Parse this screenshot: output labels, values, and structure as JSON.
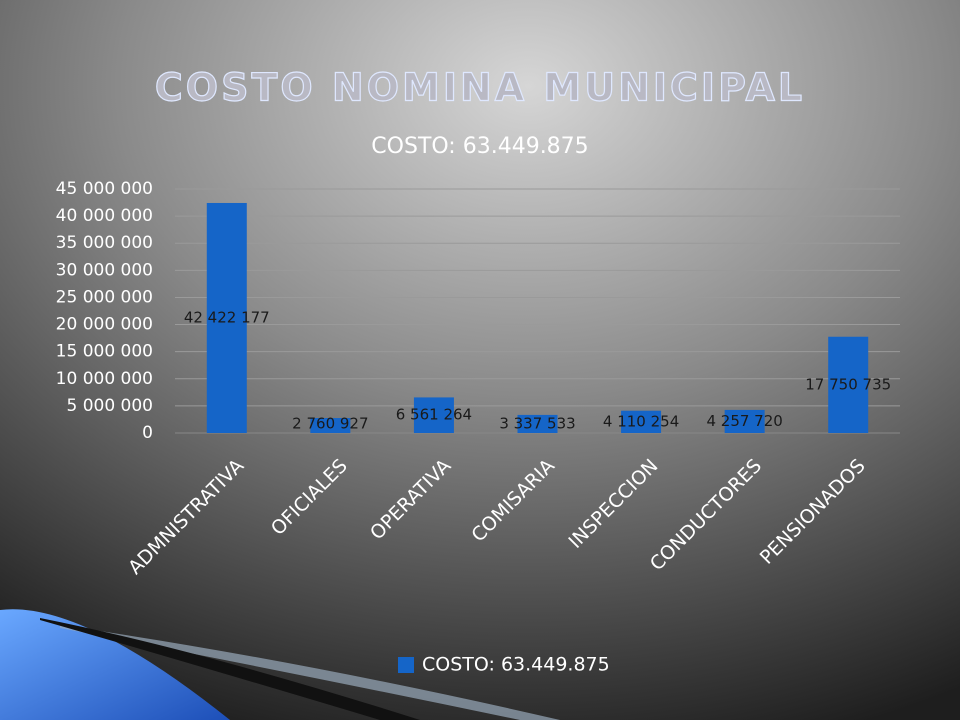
{
  "slide_title": "COSTO NOMINA MUNICIPAL",
  "chart_data": {
    "type": "bar",
    "title": "COSTO: 63.449.875",
    "categories": [
      "ADMNISTRATIVA",
      "OFICIALES",
      "OPERATIVA",
      "COMISARIA",
      "INSPECCION",
      "CONDUCTORES",
      "PENSIONADOS"
    ],
    "series": [
      {
        "name": "COSTO: 63.449.875",
        "color": "#1565c8",
        "values": [
          42422177,
          2760927,
          6561264,
          3337533,
          4110254,
          4257720,
          17750735
        ],
        "value_labels": [
          "42 422 177",
          "2 760 927",
          "6 561 264",
          "3 337 533",
          "4 110 254",
          "4 257 720",
          "17 750 735"
        ]
      }
    ],
    "ylim": [
      0,
      45000000
    ],
    "yticks": [
      0,
      {
        "value": 5000000,
        "label": "5 000 000"
      },
      {
        "value": 10000000,
        "label": "10 000 000"
      },
      {
        "value": 15000000,
        "label": "15 000 000"
      },
      {
        "value": 20000000,
        "label": "20 000 000"
      },
      {
        "value": 25000000,
        "label": "25 000 000"
      },
      {
        "value": 30000000,
        "label": "30 000 000"
      },
      {
        "value": 35000000,
        "label": "35 000 000"
      },
      {
        "value": 40000000,
        "label": "40 000 000"
      },
      {
        "value": 45000000,
        "label": "45 000 000"
      }
    ],
    "grid": true,
    "legend": "bottom"
  }
}
